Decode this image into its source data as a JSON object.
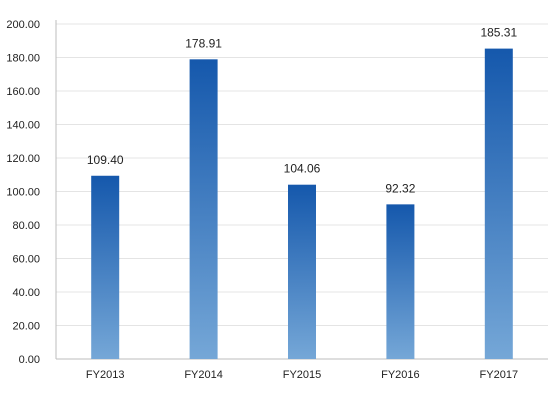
{
  "chart_data": {
    "type": "bar",
    "categories": [
      "FY2013",
      "FY2014",
      "FY2015",
      "FY2016",
      "FY2017"
    ],
    "values": [
      109.4,
      178.91,
      104.06,
      92.32,
      185.31
    ],
    "data_labels": [
      "109.40",
      "178.91",
      "104.06",
      "92.32",
      "185.31"
    ],
    "title": "",
    "xlabel": "",
    "ylabel": "",
    "ylim": [
      0,
      200
    ],
    "yticks": [
      "0.00",
      "20.00",
      "40.00",
      "60.00",
      "80.00",
      "100.00",
      "120.00",
      "140.00",
      "160.00",
      "180.00",
      "200.00"
    ],
    "grid": true,
    "legend": "none",
    "colors": {
      "bar_top": "#1558AC",
      "bar_bottom": "#75A7D7",
      "grid": "#E4E4E4",
      "axis": "#BDBDBD"
    }
  }
}
